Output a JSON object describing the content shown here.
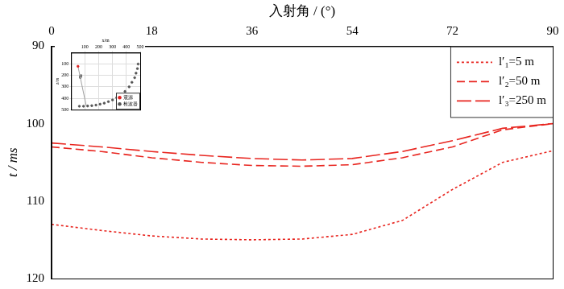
{
  "chart_data": [
    {
      "type": "line",
      "x_label": "入射角 / (°)",
      "y_label": "t / ms",
      "x": [
        0,
        9,
        18,
        27,
        36,
        45,
        54,
        63,
        72,
        81,
        90
      ],
      "series": [
        {
          "name": "l′₁=5 m",
          "color": "#e8251f",
          "line_style": "dotted",
          "values": [
            113,
            113.8,
            114.5,
            114.9,
            115,
            114.9,
            114.3,
            112.5,
            108.5,
            105,
            103.5
          ]
        },
        {
          "name": "l′₂=50 m",
          "color": "#e8251f",
          "line_style": "dashed",
          "values": [
            103,
            103.6,
            104.4,
            105,
            105.4,
            105.5,
            105.3,
            104.4,
            103,
            100.8,
            100
          ]
        },
        {
          "name": "l′₃=250 m",
          "color": "#e8251f",
          "line_style": "long_dash",
          "values": [
            102.5,
            103,
            103.6,
            104.1,
            104.5,
            104.7,
            104.5,
            103.6,
            102.2,
            100.6,
            100
          ]
        }
      ],
      "xlim": [
        0,
        90
      ],
      "xticks": [
        0,
        18,
        36,
        54,
        72,
        90
      ],
      "ylim": [
        90,
        120
      ],
      "yticks": [
        90,
        100,
        110,
        120
      ],
      "grid": false,
      "legend": "top-right"
    },
    {
      "type": "scatter",
      "x_label": "x/m",
      "y_label": "z/m",
      "series": [
        {
          "name": "震源",
          "color": "#e02020",
          "marker": "circle",
          "x": [
            50
          ],
          "values": [
            120
          ]
        },
        {
          "name": "检波器",
          "color": "#555555",
          "marker": "circle",
          "x": [
            60,
            90,
            120,
            150,
            180,
            210,
            240,
            270,
            300,
            330,
            360,
            390,
            420,
            440,
            460,
            470,
            480,
            485
          ],
          "values": [
            470,
            470,
            468,
            465,
            460,
            452,
            443,
            430,
            415,
            395,
            370,
            340,
            300,
            260,
            220,
            180,
            140,
            100
          ]
        },
        {
          "color": "#888888",
          "type": "line",
          "x": [
            50,
            110
          ],
          "values": [
            120,
            468
          ]
        }
      ],
      "annotations": [
        {
          "text": "θ",
          "x": 68,
          "y": 215
        }
      ],
      "xlim": [
        0,
        500
      ],
      "xticks": [
        100,
        200,
        300,
        400,
        500
      ],
      "ylim": [
        0,
        500
      ],
      "yticks": [
        100,
        200,
        300,
        400,
        500
      ],
      "grid": true,
      "legend": "bottom-right"
    }
  ]
}
